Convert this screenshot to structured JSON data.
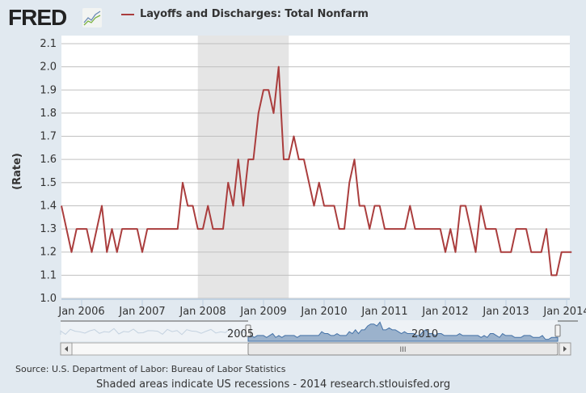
{
  "header": {
    "logo": "FRED",
    "logo_icon": "chart-line-icon",
    "series_title": "Layoffs and Discharges: Total Nonfarm"
  },
  "chart_data": {
    "type": "line",
    "title": "Layoffs and Discharges: Total Nonfarm",
    "ylabel": "(Rate)",
    "xlabel": "",
    "ylim": [
      1.0,
      2.1
    ],
    "yticks": [
      "1.0",
      "1.1",
      "1.2",
      "1.3",
      "1.4",
      "1.5",
      "1.6",
      "1.7",
      "1.8",
      "1.9",
      "2.0",
      "2.1"
    ],
    "xticks": [
      "Jan 2006",
      "Jan 2007",
      "Jan 2008",
      "Jan 2009",
      "Jan 2010",
      "Jan 2011",
      "Jan 2012",
      "Jan 2013",
      "Jan 2014"
    ],
    "grid": true,
    "line_color": "#aa3d3d",
    "recession_shading": {
      "start": "2007-12",
      "end": "2009-06",
      "color": "#e5e5e5"
    },
    "x": [
      "2005-09",
      "2005-10",
      "2005-11",
      "2005-12",
      "2006-01",
      "2006-02",
      "2006-03",
      "2006-04",
      "2006-05",
      "2006-06",
      "2006-07",
      "2006-08",
      "2006-09",
      "2006-10",
      "2006-11",
      "2006-12",
      "2007-01",
      "2007-02",
      "2007-03",
      "2007-04",
      "2007-05",
      "2007-06",
      "2007-07",
      "2007-08",
      "2007-09",
      "2007-10",
      "2007-11",
      "2007-12",
      "2008-01",
      "2008-02",
      "2008-03",
      "2008-04",
      "2008-05",
      "2008-06",
      "2008-07",
      "2008-08",
      "2008-09",
      "2008-10",
      "2008-11",
      "2008-12",
      "2009-01",
      "2009-02",
      "2009-03",
      "2009-04",
      "2009-05",
      "2009-06",
      "2009-07",
      "2009-08",
      "2009-09",
      "2009-10",
      "2009-11",
      "2009-12",
      "2010-01",
      "2010-02",
      "2010-03",
      "2010-04",
      "2010-05",
      "2010-06",
      "2010-07",
      "2010-08",
      "2010-09",
      "2010-10",
      "2010-11",
      "2010-12",
      "2011-01",
      "2011-02",
      "2011-03",
      "2011-04",
      "2011-05",
      "2011-06",
      "2011-07",
      "2011-08",
      "2011-09",
      "2011-10",
      "2011-11",
      "2011-12",
      "2012-01",
      "2012-02",
      "2012-03",
      "2012-04",
      "2012-05",
      "2012-06",
      "2012-07",
      "2012-08",
      "2012-09",
      "2012-10",
      "2012-11",
      "2012-12",
      "2013-01",
      "2013-02",
      "2013-03",
      "2013-04",
      "2013-05",
      "2013-06",
      "2013-07",
      "2013-08",
      "2013-09",
      "2013-10",
      "2013-11",
      "2013-12",
      "2014-01",
      "2014-02"
    ],
    "values": [
      1.4,
      1.3,
      1.2,
      1.3,
      1.3,
      1.3,
      1.2,
      1.3,
      1.4,
      1.2,
      1.3,
      1.2,
      1.3,
      1.3,
      1.3,
      1.3,
      1.2,
      1.3,
      1.3,
      1.3,
      1.3,
      1.3,
      1.3,
      1.3,
      1.5,
      1.4,
      1.4,
      1.3,
      1.3,
      1.4,
      1.3,
      1.3,
      1.3,
      1.5,
      1.4,
      1.6,
      1.4,
      1.6,
      1.6,
      1.8,
      1.9,
      1.9,
      1.8,
      2.0,
      1.6,
      1.6,
      1.7,
      1.6,
      1.6,
      1.5,
      1.4,
      1.5,
      1.4,
      1.4,
      1.4,
      1.3,
      1.3,
      1.5,
      1.6,
      1.4,
      1.4,
      1.3,
      1.4,
      1.4,
      1.3,
      1.3,
      1.3,
      1.3,
      1.3,
      1.4,
      1.3,
      1.3,
      1.3,
      1.3,
      1.3,
      1.3,
      1.2,
      1.3,
      1.2,
      1.4,
      1.4,
      1.3,
      1.2,
      1.4,
      1.3,
      1.3,
      1.3,
      1.2,
      1.2,
      1.2,
      1.3,
      1.3,
      1.3,
      1.2,
      1.2,
      1.2,
      1.3,
      1.1,
      1.1,
      1.2,
      1.2,
      1.2
    ]
  },
  "navigator": {
    "labels": [
      "2005",
      "2010"
    ],
    "fill_color": "#9bb2cc",
    "line_color": "#4572a7",
    "scroll_grip": "III"
  },
  "footer": {
    "source": "Source: U.S. Department of Labor: Bureau of Labor Statistics",
    "note": "Shaded areas indicate US recessions - 2014 research.stlouisfed.org"
  }
}
